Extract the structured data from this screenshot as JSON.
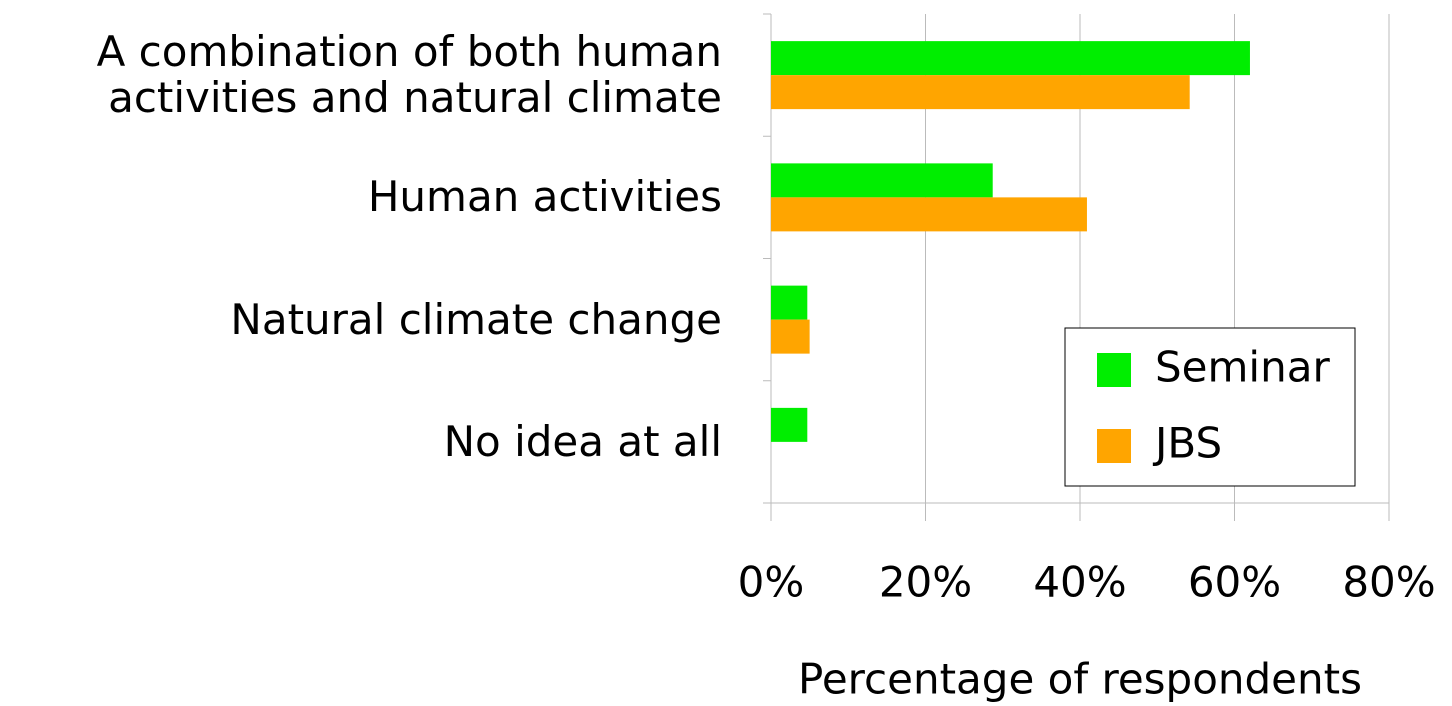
{
  "chart_data": {
    "type": "bar",
    "orientation": "horizontal",
    "categories": [
      "A combination of both human\nactivities and natural climate",
      "Human activities",
      "Natural climate change",
      "No idea at all"
    ],
    "series": [
      {
        "name": "Seminar",
        "color": "#00ee00",
        "values": [
          62,
          28.7,
          4.7,
          4.7
        ]
      },
      {
        "name": "JBS",
        "color": "#ffa500",
        "values": [
          54.2,
          40.9,
          5,
          0
        ]
      }
    ],
    "xlabel": "Percentage of respondents",
    "xlim": [
      0,
      80
    ],
    "xticks": [
      {
        "value": 0,
        "label": "0%"
      },
      {
        "value": 20,
        "label": "20%"
      },
      {
        "value": 40,
        "label": "40%"
      },
      {
        "value": 60,
        "label": "60%"
      },
      {
        "value": 80,
        "label": "80%"
      }
    ],
    "grid": true,
    "legend": "lower right"
  }
}
